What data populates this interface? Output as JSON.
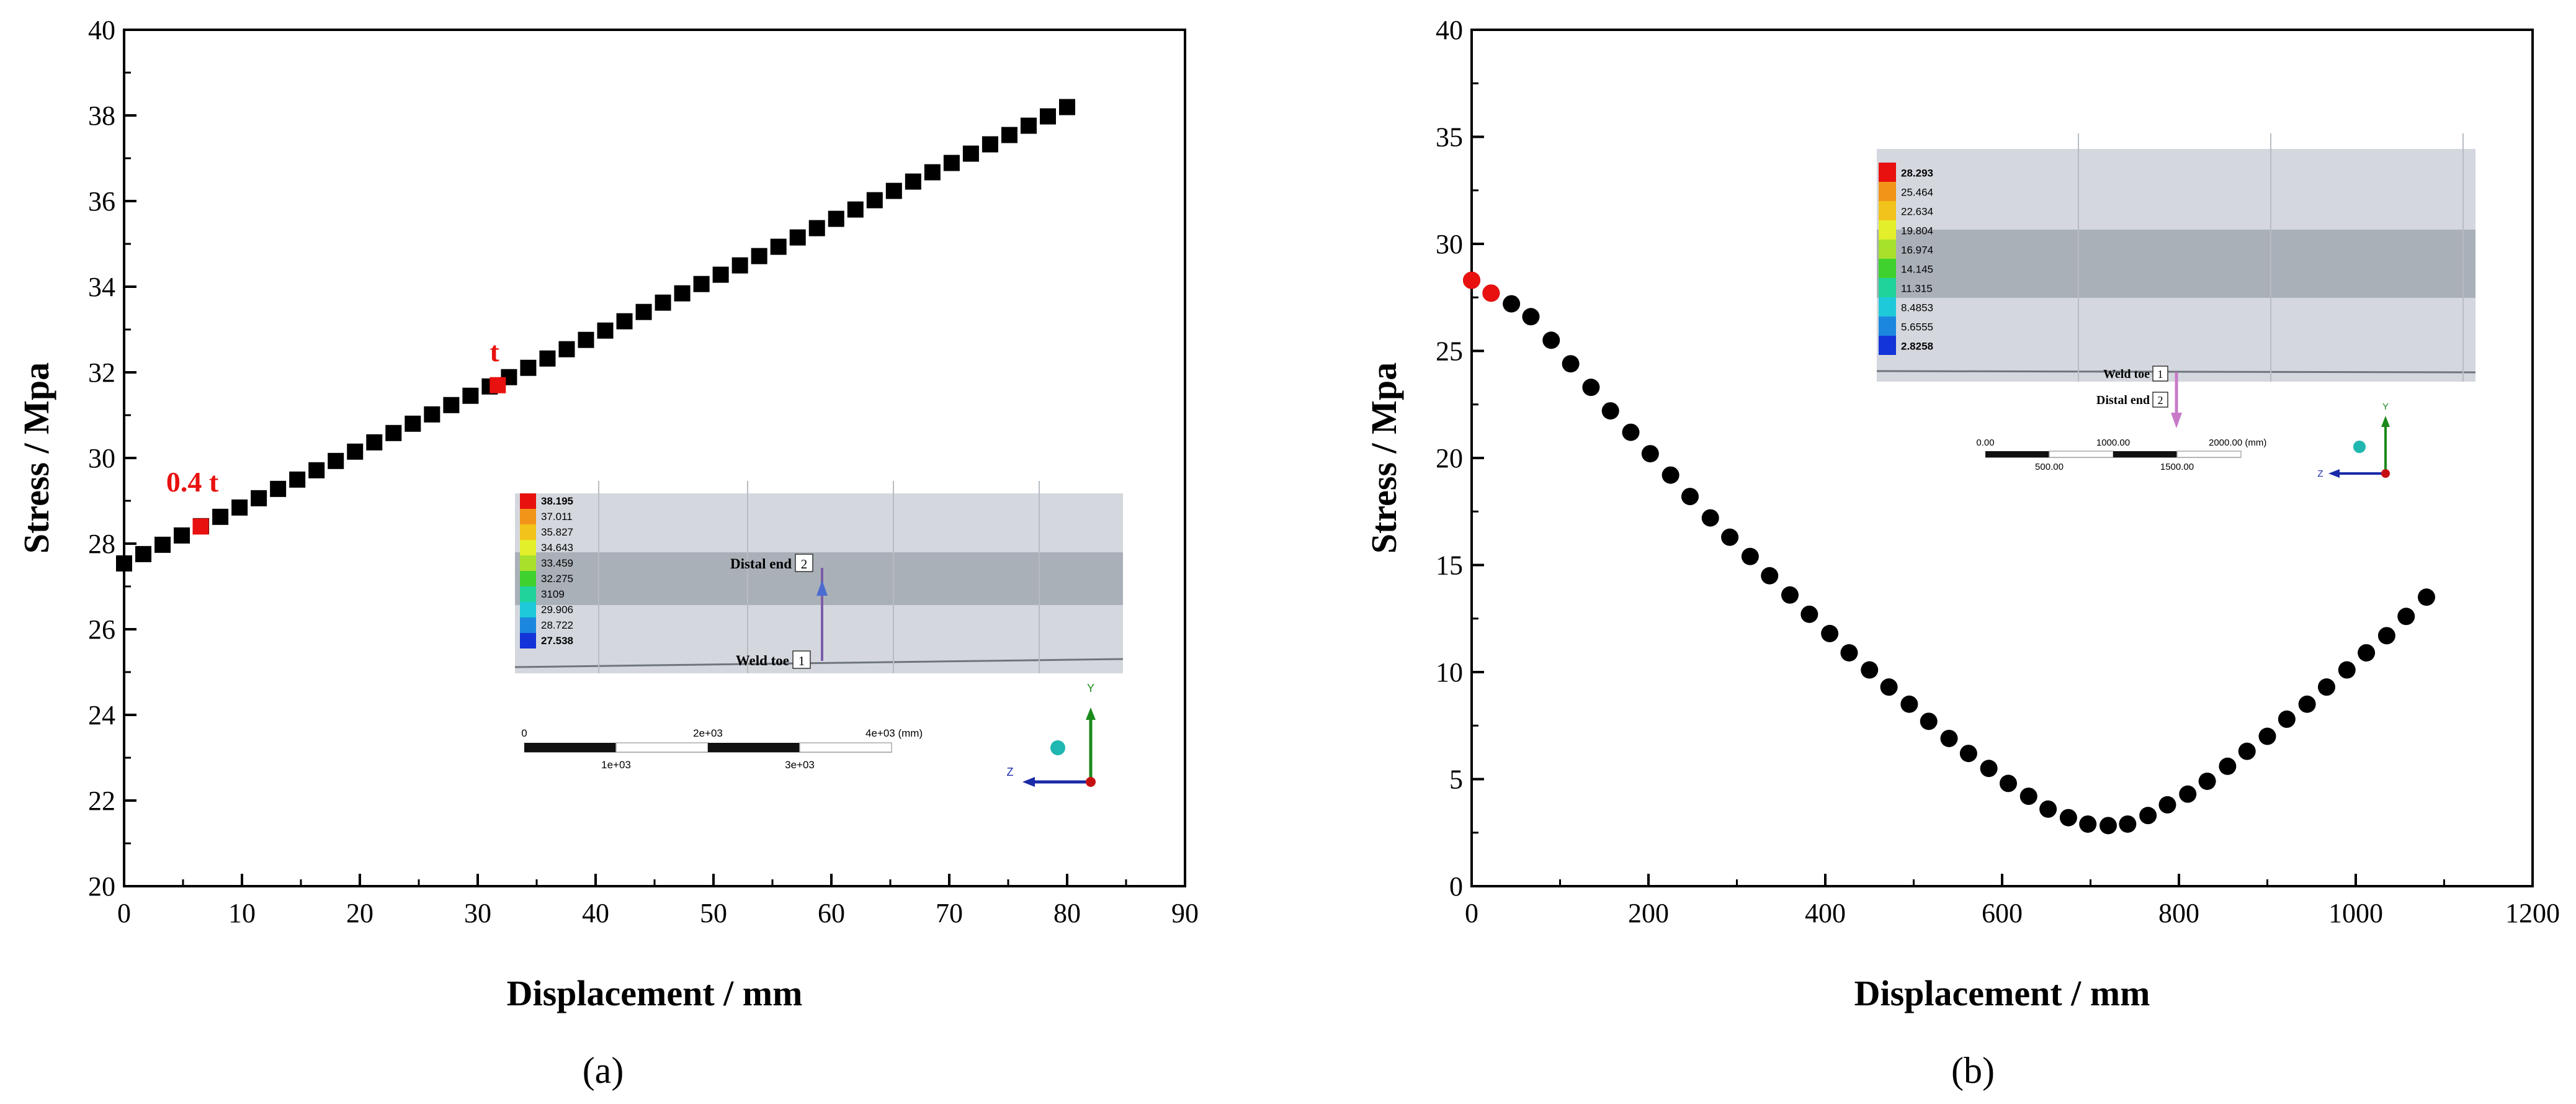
{
  "chart_data": [
    {
      "type": "scatter",
      "panel_label": "(a)",
      "xlabel": "Displacement / mm",
      "ylabel": "Stress / Mpa",
      "xlim": [
        0,
        90
      ],
      "ylim": [
        20,
        40
      ],
      "xticks": [
        "0",
        "10",
        "20",
        "30",
        "40",
        "50",
        "60",
        "70",
        "80",
        "90"
      ],
      "yticks": [
        "20",
        "22",
        "24",
        "26",
        "28",
        "30",
        "32",
        "34",
        "36",
        "38",
        "40"
      ],
      "marker": "square",
      "series": {
        "name": "Stress",
        "color": "#000000",
        "x_start": 0,
        "x_end": 80,
        "n_points": 50,
        "y_start": 27.538,
        "y_end": 38.195
      },
      "highlights": [
        {
          "label": "0.4 t",
          "x": 6.5,
          "y": 28.4,
          "color": "#e8110f"
        },
        {
          "label": "t",
          "x": 31.7,
          "y": 31.7,
          "color": "#e8110f"
        }
      ],
      "inset": {
        "legend_values": [
          "38.195",
          "37.011",
          "35.827",
          "34.643",
          "33.459",
          "32.275",
          "3109",
          "29.906",
          "28.722",
          "27.538"
        ],
        "probe_labels": [
          {
            "name": "Distal end",
            "num": "2"
          },
          {
            "name": "Weld toe",
            "num": "1"
          }
        ],
        "scale_top": [
          "0",
          "2e+03",
          "4e+03 (mm)"
        ],
        "scale_bottom": [
          "1e+03",
          "3e+03"
        ],
        "axes": {
          "y": "Y",
          "z": "Z"
        }
      }
    },
    {
      "type": "scatter",
      "panel_label": "(b)",
      "xlabel": "Displacement / mm",
      "ylabel": "Stress / Mpa",
      "xlim": [
        0,
        1200
      ],
      "ylim": [
        0,
        40
      ],
      "xticks": [
        "0",
        "200",
        "400",
        "600",
        "800",
        "1000",
        "1200"
      ],
      "yticks": [
        "0",
        "5",
        "10",
        "15",
        "20",
        "25",
        "30",
        "35",
        "40"
      ],
      "marker": "circle",
      "series": {
        "name": "Stress",
        "color": "#000000",
        "x": [
          0,
          22,
          45,
          67,
          90,
          112,
          135,
          157,
          180,
          202,
          225,
          247,
          270,
          292,
          315,
          337,
          360,
          382,
          405,
          427,
          450,
          472,
          495,
          517,
          540,
          562,
          585,
          607,
          630,
          652,
          675,
          697,
          720,
          742,
          765,
          787,
          810,
          832,
          855,
          877,
          900,
          922,
          945,
          967,
          990,
          1012,
          1035,
          1057,
          1080
        ],
        "y": [
          28.3,
          27.7,
          27.2,
          26.6,
          25.5,
          24.4,
          23.3,
          22.2,
          21.2,
          20.2,
          19.2,
          18.2,
          17.2,
          16.3,
          15.4,
          14.5,
          13.6,
          12.7,
          11.8,
          10.9,
          10.1,
          9.3,
          8.5,
          7.7,
          6.9,
          6.2,
          5.5,
          4.8,
          4.2,
          3.6,
          3.2,
          2.9,
          2.83,
          2.9,
          3.3,
          3.8,
          4.3,
          4.9,
          5.6,
          6.3,
          7.0,
          7.8,
          8.5,
          9.3,
          10.1,
          10.9,
          11.7,
          12.6,
          13.5
        ]
      },
      "highlights": [
        {
          "x": 0,
          "y": 28.3,
          "color": "#e8110f"
        },
        {
          "x": 22,
          "y": 27.7,
          "color": "#e8110f"
        }
      ],
      "inset": {
        "legend_values": [
          "28.293",
          "25.464",
          "22.634",
          "19.804",
          "16.974",
          "14.145",
          "11.315",
          "8.4853",
          "5.6555",
          "2.8258"
        ],
        "probe_labels": [
          {
            "name": "Weld toe",
            "num": "1"
          },
          {
            "name": "Distal end",
            "num": "2"
          }
        ],
        "scale_top": [
          "0.00",
          "1000.00",
          "2000.00 (mm)"
        ],
        "scale_bottom": [
          "500.00",
          "1500.00"
        ],
        "axes": {
          "y": "Y",
          "z": "Z"
        }
      }
    }
  ],
  "colors": {
    "contour": [
      "#e8110f",
      "#f29418",
      "#f2c31a",
      "#e3ef2a",
      "#a7e12c",
      "#3fd22e",
      "#1fd49a",
      "#1ec9d9",
      "#1c87df",
      "#1234d8"
    ],
    "highlight": "#e8110f",
    "marker": "#000000"
  }
}
